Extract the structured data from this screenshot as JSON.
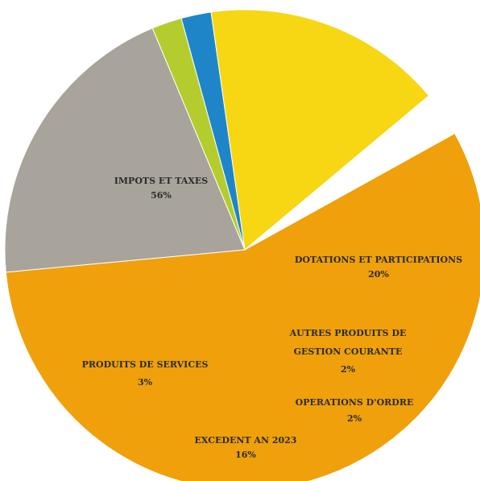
{
  "chart_data": {
    "type": "pie",
    "slices": [
      {
        "label": "IMPOTS ET TAXES",
        "value": 56,
        "value_label": "56%",
        "color": "#EFA00B"
      },
      {
        "label": "DOTATIONS ET PARTICIPATIONS",
        "value": 20,
        "value_label": "20%",
        "color": "#A8A39B"
      },
      {
        "label": "AUTRES PRODUITS DE GESTION COURANTE",
        "value": 2,
        "value_label": "2%",
        "color": "#B5CC2E"
      },
      {
        "label": "OPERATIONS D'ORDRE",
        "value": 2,
        "value_label": "2%",
        "color": "#1E86C8"
      },
      {
        "label": "EXCEDENT AN 2023",
        "value": 16,
        "value_label": "16%",
        "color": "#F7D613"
      },
      {
        "label": "PRODUITS DE SERVICES",
        "value": 3,
        "value_label": "3%",
        "color": "#FFFFFF"
      }
    ]
  }
}
